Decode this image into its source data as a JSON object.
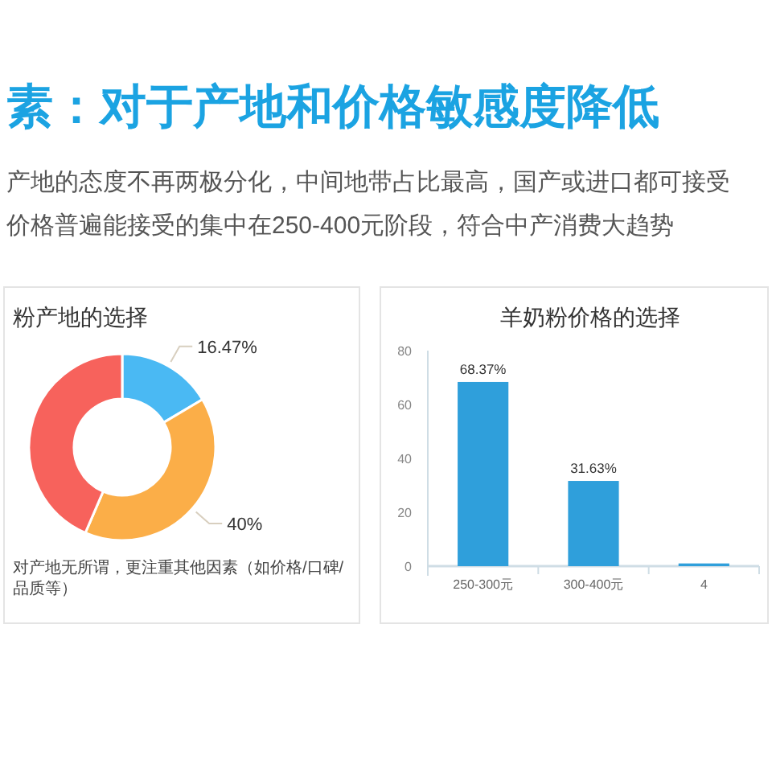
{
  "chart_data": [
    {
      "type": "other",
      "title": "素：对于产地和价格敏感度降低",
      "annotations": [
        "产地的态度不再两极分化，中间地带占比最高，国产或进口都可接受",
        "价格普遍能接受的集中在250-400元阶段，符合中产消费大趋势"
      ]
    },
    {
      "type": "donut",
      "title": "粉产地的选择",
      "categories": [
        null,
        null,
        null
      ],
      "values": [
        16.47,
        40,
        43.53
      ],
      "colors": [
        "#4ab9f3",
        "#fbae48",
        "#f7625c"
      ],
      "value_labels": [
        "16.47%",
        "40%",
        null
      ],
      "annotations": [
        "对产地无所谓，更注重其他因素（如价格/口碑/品质等）"
      ]
    },
    {
      "type": "bar",
      "title": "羊奶粉价格的选择",
      "categories": [
        "250-300元",
        "300-400元",
        "4"
      ],
      "values": [
        68.37,
        31.63,
        1
      ],
      "color": "#2f9fdb",
      "value_labels": [
        "68.37%",
        "31.63%",
        null
      ],
      "ylim": [
        0,
        80
      ],
      "yticks": [
        0,
        20,
        40,
        60,
        80
      ]
    }
  ]
}
